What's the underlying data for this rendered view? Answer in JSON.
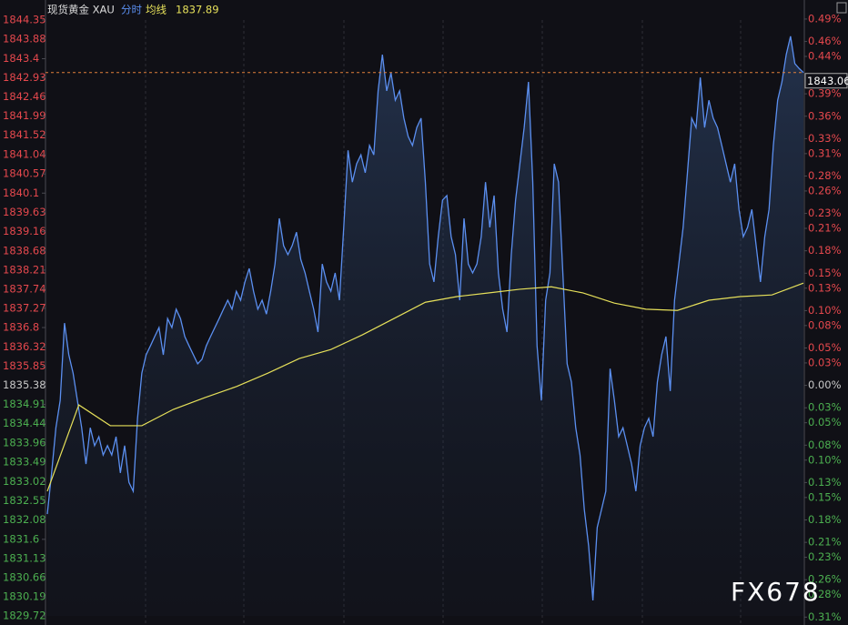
{
  "chart_data": {
    "type": "line",
    "title": "现货黄金 XAU",
    "series": [
      {
        "name": "分时",
        "color": "#5b8ff0",
        "area": true,
        "values": [
          1832.22,
          1833.23,
          1834.34,
          1835.01,
          1836.91,
          1836.13,
          1835.68,
          1835.01,
          1834.34,
          1833.45,
          1834.34,
          1833.9,
          1834.12,
          1833.67,
          1833.9,
          1833.67,
          1834.12,
          1833.23,
          1833.9,
          1833.0,
          1832.78,
          1834.57,
          1835.68,
          1836.13,
          1836.35,
          1836.58,
          1836.8,
          1836.13,
          1837.02,
          1836.8,
          1837.25,
          1837.02,
          1836.58,
          1836.35,
          1836.13,
          1835.91,
          1836.02,
          1836.35,
          1836.58,
          1836.8,
          1837.02,
          1837.25,
          1837.47,
          1837.25,
          1837.69,
          1837.47,
          1837.92,
          1838.25,
          1837.69,
          1837.25,
          1837.47,
          1837.13,
          1837.69,
          1838.36,
          1839.48,
          1838.81,
          1838.59,
          1838.81,
          1839.14,
          1838.47,
          1838.14,
          1837.69,
          1837.25,
          1836.69,
          1838.36,
          1837.92,
          1837.69,
          1838.14,
          1837.47,
          1839.26,
          1841.15,
          1840.37,
          1840.82,
          1841.04,
          1840.6,
          1841.27,
          1841.04,
          1842.61,
          1843.5,
          1842.61,
          1843.05,
          1842.38,
          1842.61,
          1841.94,
          1841.49,
          1841.27,
          1841.71,
          1841.94,
          1840.37,
          1838.36,
          1837.92,
          1839.03,
          1839.93,
          1840.04,
          1839.03,
          1838.59,
          1837.47,
          1839.48,
          1838.36,
          1838.14,
          1838.36,
          1839.03,
          1840.37,
          1839.26,
          1840.04,
          1838.14,
          1837.25,
          1836.69,
          1838.59,
          1839.93,
          1840.82,
          1841.71,
          1842.83,
          1840.37,
          1836.35,
          1835.01,
          1837.47,
          1838.14,
          1840.82,
          1840.37,
          1838.14,
          1835.91,
          1835.46,
          1834.34,
          1833.67,
          1832.33,
          1831.44,
          1830.1,
          1831.89,
          1832.33,
          1832.78,
          1835.79,
          1835.01,
          1834.12,
          1834.34,
          1833.9,
          1833.45,
          1832.78,
          1833.9,
          1834.34,
          1834.57,
          1834.12,
          1835.46,
          1836.13,
          1836.58,
          1835.24,
          1837.47,
          1838.36,
          1839.26,
          1840.6,
          1841.94,
          1841.71,
          1842.94,
          1841.71,
          1842.38,
          1841.94,
          1841.71,
          1841.27,
          1840.82,
          1840.37,
          1840.82,
          1839.7,
          1839.03,
          1839.26,
          1839.7,
          1838.81,
          1837.92,
          1839.03,
          1839.7,
          1841.27,
          1842.38,
          1842.83,
          1843.5,
          1843.95,
          1843.28,
          1843.16,
          1843.06
        ]
      },
      {
        "name": "均线",
        "color": "#e6e05a",
        "values": [
          1832.78,
          1834.9,
          1834.39,
          1834.39,
          1834.79,
          1835.08,
          1835.35,
          1835.68,
          1836.04,
          1836.26,
          1836.62,
          1837.02,
          1837.42,
          1837.56,
          1837.65,
          1837.74,
          1837.8,
          1837.65,
          1837.4,
          1837.25,
          1837.22,
          1837.47,
          1837.56,
          1837.6,
          1837.89
        ]
      }
    ],
    "average_last": 1837.89,
    "last_price": 1843.06,
    "last_price_color": "#e0803a",
    "watermark": "FX678",
    "ylim": [
      1829.72,
      1844.35
    ],
    "yticks": [
      1844.35,
      1843.88,
      1843.4,
      1842.93,
      1842.46,
      1841.99,
      1841.52,
      1841.04,
      1840.57,
      1840.1,
      1839.63,
      1839.16,
      1838.68,
      1838.21,
      1837.74,
      1837.27,
      1836.8,
      1836.32,
      1835.85,
      1835.38,
      1834.91,
      1834.44,
      1833.96,
      1833.49,
      1833.02,
      1832.55,
      1832.08,
      1831.6,
      1831.13,
      1830.66,
      1830.19,
      1829.72
    ],
    "y2lim": [
      -0.3084,
      0.4887
    ],
    "y2ticks": [
      {
        "value": 0.49,
        "label": "0.49%"
      },
      {
        "value": 0.46,
        "label": "0.46%"
      },
      {
        "value": 0.44,
        "label": "0.44%"
      },
      {
        "value": 0.39,
        "label": "0.39%"
      },
      {
        "value": 0.36,
        "label": "0.36%"
      },
      {
        "value": 0.33,
        "label": "0.33%"
      },
      {
        "value": 0.31,
        "label": "0.31%"
      },
      {
        "value": 0.28,
        "label": "0.28%"
      },
      {
        "value": 0.26,
        "label": "0.26%"
      },
      {
        "value": 0.23,
        "label": "0.23%"
      },
      {
        "value": 0.21,
        "label": "0.21%"
      },
      {
        "value": 0.18,
        "label": "0.18%"
      },
      {
        "value": 0.15,
        "label": "0.15%"
      },
      {
        "value": 0.13,
        "label": "0.13%"
      },
      {
        "value": 0.1,
        "label": "0.10%"
      },
      {
        "value": 0.08,
        "label": "0.08%"
      },
      {
        "value": 0.05,
        "label": "0.05%"
      },
      {
        "value": 0.03,
        "label": "0.03%"
      },
      {
        "value": 0,
        "label": "0.00%"
      },
      {
        "value": -0.03,
        "label": "0.03%"
      },
      {
        "value": -0.05,
        "label": "0.05%"
      },
      {
        "value": -0.08,
        "label": "0.08%"
      },
      {
        "value": -0.1,
        "label": "0.10%"
      },
      {
        "value": -0.13,
        "label": "0.13%"
      },
      {
        "value": -0.15,
        "label": "0.15%"
      },
      {
        "value": -0.18,
        "label": "0.18%"
      },
      {
        "value": -0.21,
        "label": "0.21%"
      },
      {
        "value": -0.23,
        "label": "0.23%"
      },
      {
        "value": -0.26,
        "label": "0.26%"
      },
      {
        "value": -0.28,
        "label": "0.28%"
      },
      {
        "value": -0.31,
        "label": "0.31%"
      }
    ],
    "tick_colors": {
      "up": "#e5484d",
      "down": "#4caf50",
      "flat": "#c8c8c8"
    },
    "grid": true
  }
}
